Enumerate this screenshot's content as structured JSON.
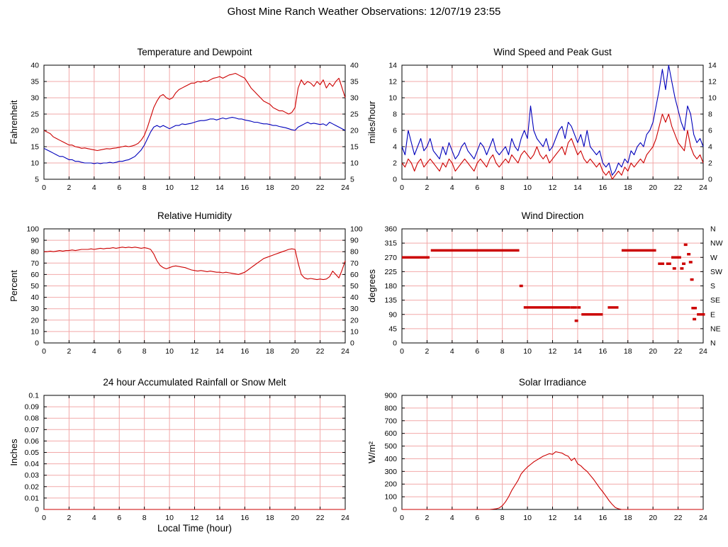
{
  "page": {
    "title": "Ghost Mine Ranch Weather Observations: 12/07/19 23:55"
  },
  "colors": {
    "grid": "#f2a9a9",
    "axis": "#000000",
    "series_red": "#cc0000",
    "series_blue": "#0000bb"
  },
  "chart_data": [
    {
      "id": "temperature_dewpoint",
      "type": "line",
      "title": "Temperature and Dewpoint",
      "ylabel": "Fahrenheit",
      "ylim": [
        5,
        40
      ],
      "ytick_step": 5,
      "mirror_right": true,
      "xlim": [
        0,
        24
      ],
      "xtick_step": 2,
      "series": [
        {
          "name": "Temperature",
          "color": "#cc0000",
          "x_start": 0,
          "x_step": 0.25,
          "y": [
            20,
            19.5,
            19,
            18,
            17.5,
            17,
            16.5,
            16,
            15.5,
            15.5,
            15,
            14.8,
            14.5,
            14.6,
            14.4,
            14.2,
            14,
            13.8,
            14,
            14.2,
            14.4,
            14.3,
            14.5,
            14.6,
            14.8,
            15,
            15.2,
            15,
            15.2,
            15.5,
            16,
            17,
            18.5,
            21,
            24,
            27,
            29,
            30.5,
            31,
            30,
            29.5,
            30,
            31.5,
            32.5,
            33,
            33.5,
            34,
            34.5,
            34.5,
            35,
            34.8,
            35.2,
            35,
            35.5,
            36,
            36.2,
            36.5,
            36,
            36.5,
            37,
            37.2,
            37.5,
            37,
            36.5,
            36,
            34.5,
            33,
            32,
            31,
            30,
            29,
            28.5,
            28,
            27,
            26.5,
            26,
            26,
            25.5,
            25,
            25.5,
            27,
            33,
            35.5,
            34,
            35,
            34.5,
            33.5,
            35,
            34,
            35.5,
            33,
            34.5,
            33.5,
            35,
            36,
            33,
            30
          ]
        },
        {
          "name": "Dewpoint",
          "color": "#0000bb",
          "x_start": 0,
          "x_step": 0.25,
          "y": [
            14.5,
            14,
            13.5,
            13,
            12.5,
            12,
            12,
            11.5,
            11,
            11,
            10.5,
            10.5,
            10.2,
            10,
            10,
            10,
            9.8,
            10,
            9.8,
            10,
            10,
            10.2,
            10,
            10.2,
            10.5,
            10.5,
            10.8,
            11,
            11.5,
            12,
            13,
            14,
            15.5,
            17.5,
            19.5,
            21,
            21.5,
            21,
            21.5,
            21,
            20.5,
            21,
            21.5,
            21.5,
            22,
            21.8,
            22,
            22.2,
            22.5,
            22.8,
            23,
            23,
            23.2,
            23.5,
            23.5,
            23.2,
            23.5,
            23.8,
            23.5,
            23.8,
            24,
            23.8,
            23.5,
            23.5,
            23.2,
            23,
            22.8,
            22.5,
            22.5,
            22.2,
            22,
            22,
            21.8,
            21.5,
            21.5,
            21.2,
            21,
            20.8,
            20.5,
            20.2,
            20,
            21,
            21.5,
            22,
            22.5,
            22,
            22.2,
            22,
            21.8,
            22,
            21.5,
            22.5,
            22,
            21.5,
            21,
            20.5,
            20
          ]
        }
      ]
    },
    {
      "id": "wind_speed",
      "type": "line",
      "title": "Wind Speed and Peak Gust",
      "ylabel": "miles/hour",
      "ylim": [
        0,
        14
      ],
      "ytick_step": 2,
      "mirror_right": true,
      "xlim": [
        0,
        24
      ],
      "xtick_step": 2,
      "series": [
        {
          "name": "Peak Gust",
          "color": "#0000bb",
          "x_start": 0,
          "x_step": 0.25,
          "y": [
            4,
            3,
            6,
            4.5,
            3,
            4,
            5,
            3.5,
            4,
            5,
            3.5,
            3,
            2.5,
            4,
            3,
            4.5,
            3.5,
            2.5,
            3,
            4,
            4.5,
            3.5,
            3,
            2.5,
            3.5,
            4.5,
            4,
            3,
            4,
            5,
            3.5,
            3,
            3.5,
            4,
            3,
            5,
            4,
            3.5,
            5,
            6,
            5,
            9,
            6,
            5,
            4.5,
            4,
            5,
            3.5,
            4,
            5,
            6,
            6.5,
            5,
            7,
            6.5,
            5.5,
            4.5,
            5.5,
            4,
            6,
            4,
            3.5,
            3,
            3.5,
            2,
            1.5,
            2,
            0.5,
            1,
            2,
            1.5,
            2.5,
            2,
            3.5,
            3,
            4,
            4.5,
            4,
            5.5,
            6,
            7,
            9,
            11,
            13.5,
            11,
            14,
            12,
            10,
            8.5,
            7,
            6,
            9,
            8,
            5.5,
            4.5,
            5,
            4
          ]
        },
        {
          "name": "Wind Speed",
          "color": "#cc0000",
          "x_start": 0,
          "x_step": 0.25,
          "y": [
            2,
            1.5,
            2.5,
            2,
            1,
            2,
            2.5,
            1.5,
            2,
            2.5,
            2,
            1.5,
            1,
            2,
            1.5,
            2.5,
            2,
            1,
            1.5,
            2,
            2.5,
            2,
            1.5,
            1,
            2,
            2.5,
            2,
            1.5,
            2.5,
            3,
            2,
            1.5,
            2,
            2.5,
            2,
            3,
            2.5,
            2,
            3,
            3.5,
            3,
            2.5,
            3,
            4,
            3,
            2.5,
            3,
            2,
            2.5,
            3,
            3.5,
            4,
            3,
            4.5,
            5,
            4,
            3,
            3.5,
            2.5,
            2,
            2.5,
            2,
            1.5,
            2,
            1,
            0.5,
            1,
            0,
            0.5,
            1,
            0.5,
            1.5,
            1,
            2,
            1.5,
            2,
            2.5,
            2,
            3,
            3.5,
            4,
            5,
            6.5,
            8,
            7,
            8,
            6.5,
            5.5,
            4.5,
            4,
            3.5,
            6,
            4,
            3,
            2.5,
            3,
            2
          ]
        }
      ]
    },
    {
      "id": "humidity",
      "type": "line",
      "title": "Relative Humidity",
      "ylabel": "Percent",
      "ylim": [
        0,
        100
      ],
      "ytick_step": 10,
      "mirror_right": true,
      "xlim": [
        0,
        24
      ],
      "xtick_step": 2,
      "series": [
        {
          "name": "Relative Humidity",
          "color": "#cc0000",
          "x_start": 0,
          "x_step": 0.25,
          "y": [
            80,
            80,
            80.5,
            80,
            80.5,
            81,
            80.5,
            81,
            81,
            81.5,
            81,
            81.5,
            82,
            82,
            82,
            82.5,
            82,
            82.5,
            83,
            82.5,
            83,
            83,
            83.5,
            83,
            83.5,
            84,
            83.5,
            84,
            83.5,
            84,
            83.5,
            83,
            83.5,
            83,
            82,
            78,
            72,
            68,
            66,
            65,
            66,
            67,
            67.5,
            67,
            66.5,
            66,
            65,
            64,
            63.5,
            63,
            63.5,
            63,
            62.5,
            63,
            62.5,
            62,
            62,
            61.5,
            62,
            61.5,
            61,
            60.5,
            60,
            61,
            62,
            64,
            66,
            68,
            70,
            72,
            74,
            75,
            76,
            77,
            78,
            79,
            80,
            81,
            82,
            82.5,
            82,
            70,
            60,
            57,
            56,
            56.5,
            56,
            55.5,
            56,
            55.5,
            56,
            58,
            63,
            60,
            57,
            64,
            72
          ]
        }
      ]
    },
    {
      "id": "wind_direction",
      "type": "scatter",
      "title": "Wind Direction",
      "ylabel": "degrees",
      "color": "#cc0000",
      "ylim": [
        0,
        360
      ],
      "ytick_step": 45,
      "right_labels": [
        "N",
        "NE",
        "E",
        "SE",
        "S",
        "SW",
        "W",
        "NW",
        "N"
      ],
      "xlim": [
        0,
        24
      ],
      "xtick_step": 2,
      "segments": [
        [
          0.0,
          2.2,
          270
        ],
        [
          2.3,
          9.35,
          292
        ],
        [
          9.7,
          13.4,
          112
        ],
        [
          14.3,
          16.0,
          90
        ],
        [
          16.4,
          17.25,
          112
        ],
        [
          17.5,
          20.25,
          292
        ],
        [
          20.4,
          20.9,
          250
        ],
        [
          21.05,
          21.45,
          250
        ],
        [
          23.5,
          23.9,
          90
        ]
      ],
      "points": [
        [
          9.5,
          180
        ],
        [
          13.55,
          112
        ],
        [
          13.8,
          112
        ],
        [
          14.1,
          112
        ],
        [
          13.9,
          70
        ],
        [
          21.6,
          270
        ],
        [
          21.85,
          270
        ],
        [
          22.1,
          270
        ],
        [
          21.7,
          235
        ],
        [
          22.3,
          235
        ],
        [
          22.45,
          250
        ],
        [
          23.0,
          255
        ],
        [
          22.6,
          310
        ],
        [
          22.85,
          280
        ],
        [
          23.1,
          200
        ],
        [
          23.2,
          110
        ],
        [
          23.35,
          110
        ],
        [
          23.3,
          75
        ],
        [
          24.0,
          90
        ]
      ]
    },
    {
      "id": "rainfall",
      "type": "line",
      "title": "24 hour Accumulated Rainfall or Snow Melt",
      "ylabel": "Inches",
      "xlabel": "Local Time (hour)",
      "ylim": [
        0,
        0.1
      ],
      "ytick_step": 0.01,
      "mirror_right": false,
      "xlim": [
        0,
        24
      ],
      "xtick_step": 2,
      "series": [
        {
          "name": "Rainfall",
          "color": "#cc0000",
          "x_start": 0,
          "x_step": 24,
          "y": [
            0,
            0
          ]
        }
      ]
    },
    {
      "id": "solar",
      "type": "line",
      "title": "Solar Irradiance",
      "ylabel": "W/m²",
      "ylim": [
        0,
        900
      ],
      "ytick_step": 100,
      "mirror_right": false,
      "xlim": [
        0,
        24
      ],
      "xtick_step": 2,
      "series": [
        {
          "name": "Solar Irradiance",
          "color": "#cc0000",
          "x_start": 0,
          "x_step": 0.25,
          "y": [
            0,
            0,
            0,
            0,
            0,
            0,
            0,
            0,
            0,
            0,
            0,
            0,
            0,
            0,
            0,
            0,
            0,
            0,
            0,
            0,
            0,
            0,
            0,
            0,
            0,
            0,
            0,
            0,
            0,
            2,
            5,
            12,
            30,
            60,
            100,
            150,
            190,
            230,
            280,
            310,
            335,
            355,
            375,
            390,
            405,
            420,
            430,
            440,
            435,
            455,
            450,
            445,
            430,
            420,
            385,
            405,
            360,
            345,
            320,
            300,
            270,
            240,
            205,
            170,
            140,
            105,
            70,
            40,
            15,
            5,
            0,
            0,
            0,
            0,
            0,
            0,
            0,
            0,
            0,
            0,
            0,
            0,
            0,
            0,
            0,
            0,
            0,
            0,
            0,
            0,
            0,
            0,
            0,
            0,
            0,
            0,
            0
          ]
        }
      ]
    }
  ]
}
